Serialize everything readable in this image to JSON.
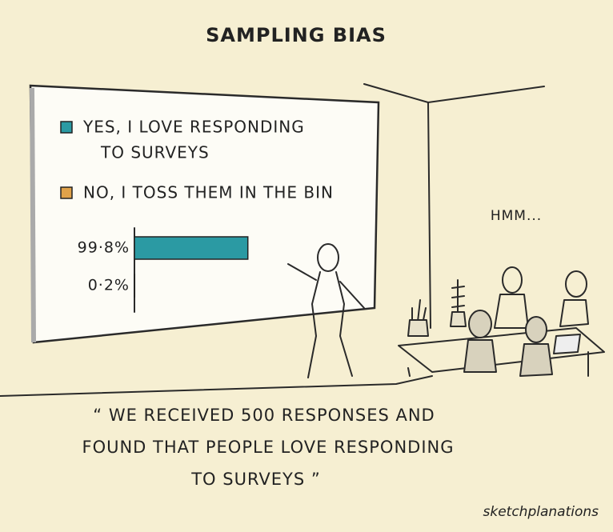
{
  "title": "SAMPLING BIAS",
  "board": {
    "series": [
      {
        "name_lines": [
          "YES, I LOVE RESPONDING",
          "TO SURVEYS"
        ],
        "color": "#2b9aa3",
        "value": 99.8,
        "value_label": "99·8%"
      },
      {
        "name_lines": [
          "NO, I TOSS THEM IN THE BIN"
        ],
        "color": "#e0a24a",
        "value": 0.2,
        "value_label": "0·2%"
      }
    ]
  },
  "speech": "HMM...",
  "quote_lines": [
    "“ WE RECEIVED 500 RESPONSES AND",
    "FOUND THAT PEOPLE LOVE RESPONDING",
    "TO SURVEYS ”"
  ],
  "credit": "sketchplanations"
}
